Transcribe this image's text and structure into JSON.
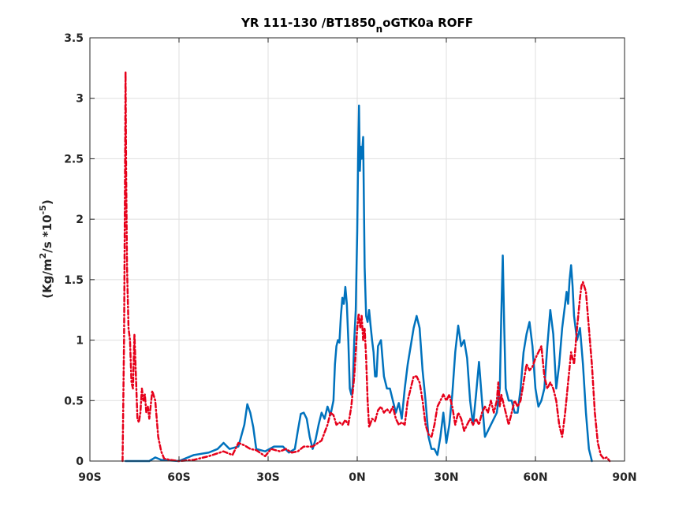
{
  "chart_data": {
    "type": "line",
    "title": {
      "main": "YR 111-130 /BT1850",
      "sub": "n",
      "tail": "oGTK0a ROFF"
    },
    "ylabel": {
      "unit": "(Kg/m",
      "sup1": "2",
      "mid": "/s   *10",
      "sup2": "-5",
      "end": ")"
    },
    "xlim": [
      -90,
      90
    ],
    "ylim": [
      0,
      3.5
    ],
    "grid": true,
    "x_ticks": [
      -90,
      -60,
      -30,
      0,
      30,
      60,
      90
    ],
    "x_tick_labels": [
      "90S",
      "60S",
      "30S",
      "0N",
      "30N",
      "60N",
      "90N"
    ],
    "y_ticks": [
      0,
      0.5,
      1,
      1.5,
      2,
      2.5,
      3,
      3.5
    ],
    "y_tick_labels": [
      "0",
      "0.5",
      "1",
      "1.5",
      "2",
      "2.5",
      "3",
      "3.5"
    ],
    "series": [
      {
        "color": "#0072bd",
        "style": "solid",
        "points": [
          [
            -78,
            0
          ],
          [
            -70,
            0
          ],
          [
            -68,
            0.03
          ],
          [
            -66,
            0.01
          ],
          [
            -60,
            0
          ],
          [
            -55,
            0.05
          ],
          [
            -50,
            0.07
          ],
          [
            -47,
            0.1
          ],
          [
            -45,
            0.15
          ],
          [
            -43,
            0.1
          ],
          [
            -40,
            0.12
          ],
          [
            -38,
            0.3
          ],
          [
            -37,
            0.47
          ],
          [
            -36,
            0.4
          ],
          [
            -35,
            0.28
          ],
          [
            -34,
            0.1
          ],
          [
            -31,
            0.08
          ],
          [
            -28,
            0.12
          ],
          [
            -25,
            0.12
          ],
          [
            -23,
            0.07
          ],
          [
            -21,
            0.1
          ],
          [
            -20,
            0.25
          ],
          [
            -19,
            0.39
          ],
          [
            -18,
            0.4
          ],
          [
            -17,
            0.35
          ],
          [
            -16,
            0.2
          ],
          [
            -15,
            0.1
          ],
          [
            -14,
            0.18
          ],
          [
            -13,
            0.3
          ],
          [
            -12,
            0.4
          ],
          [
            -11,
            0.35
          ],
          [
            -10,
            0.45
          ],
          [
            -9,
            0.38
          ],
          [
            -8,
            0.5
          ],
          [
            -7.5,
            0.8
          ],
          [
            -7,
            0.95
          ],
          [
            -6.5,
            1.0
          ],
          [
            -6,
            0.98
          ],
          [
            -5.5,
            1.2
          ],
          [
            -5,
            1.35
          ],
          [
            -4.5,
            1.3
          ],
          [
            -4,
            1.44
          ],
          [
            -3.5,
            1.3
          ],
          [
            -3,
            1.0
          ],
          [
            -2.5,
            0.6
          ],
          [
            -2,
            0.55
          ],
          [
            -1.5,
            0.62
          ],
          [
            -1,
            1.0
          ],
          [
            -0.5,
            1.25
          ],
          [
            0,
            1.9
          ],
          [
            0.3,
            2.5
          ],
          [
            0.6,
            2.94
          ],
          [
            0.9,
            2.4
          ],
          [
            1.2,
            2.6
          ],
          [
            1.5,
            2.5
          ],
          [
            2,
            2.68
          ],
          [
            2.5,
            1.6
          ],
          [
            3,
            1.2
          ],
          [
            3.5,
            1.15
          ],
          [
            4,
            1.25
          ],
          [
            4.5,
            1.12
          ],
          [
            5,
            1.0
          ],
          [
            5.5,
            0.9
          ],
          [
            6,
            0.7
          ],
          [
            6.5,
            0.7
          ],
          [
            7,
            0.95
          ],
          [
            8,
            1.0
          ],
          [
            9,
            0.7
          ],
          [
            10,
            0.6
          ],
          [
            11,
            0.6
          ],
          [
            12,
            0.5
          ],
          [
            13,
            0.4
          ],
          [
            14,
            0.48
          ],
          [
            15,
            0.35
          ],
          [
            16,
            0.6
          ],
          [
            17,
            0.8
          ],
          [
            18,
            0.95
          ],
          [
            19,
            1.1
          ],
          [
            20,
            1.2
          ],
          [
            21,
            1.1
          ],
          [
            22,
            0.75
          ],
          [
            23,
            0.5
          ],
          [
            24,
            0.2
          ],
          [
            25,
            0.1
          ],
          [
            26,
            0.1
          ],
          [
            27,
            0.05
          ],
          [
            28,
            0.2
          ],
          [
            29,
            0.4
          ],
          [
            30,
            0.15
          ],
          [
            31,
            0.3
          ],
          [
            32,
            0.55
          ],
          [
            33,
            0.9
          ],
          [
            34,
            1.12
          ],
          [
            35,
            0.95
          ],
          [
            36,
            1.0
          ],
          [
            37,
            0.85
          ],
          [
            38,
            0.5
          ],
          [
            39,
            0.3
          ],
          [
            40,
            0.55
          ],
          [
            41,
            0.82
          ],
          [
            42,
            0.5
          ],
          [
            43,
            0.2
          ],
          [
            44,
            0.25
          ],
          [
            45,
            0.3
          ],
          [
            46,
            0.35
          ],
          [
            47,
            0.4
          ],
          [
            48,
            0.6
          ],
          [
            48.5,
            1.2
          ],
          [
            49,
            1.7
          ],
          [
            49.5,
            1.1
          ],
          [
            50,
            0.6
          ],
          [
            51,
            0.5
          ],
          [
            52,
            0.5
          ],
          [
            53,
            0.4
          ],
          [
            54,
            0.4
          ],
          [
            55,
            0.6
          ],
          [
            56,
            0.9
          ],
          [
            57,
            1.05
          ],
          [
            58,
            1.15
          ],
          [
            59,
            0.95
          ],
          [
            60,
            0.6
          ],
          [
            61,
            0.45
          ],
          [
            62,
            0.5
          ],
          [
            63,
            0.6
          ],
          [
            64,
            0.95
          ],
          [
            65,
            1.25
          ],
          [
            66,
            1.05
          ],
          [
            67,
            0.6
          ],
          [
            68,
            0.8
          ],
          [
            69,
            1.1
          ],
          [
            70,
            1.3
          ],
          [
            70.5,
            1.4
          ],
          [
            71,
            1.3
          ],
          [
            71.5,
            1.5
          ],
          [
            72,
            1.62
          ],
          [
            72.5,
            1.45
          ],
          [
            73,
            1.2
          ],
          [
            74,
            1.0
          ],
          [
            75,
            1.1
          ],
          [
            76,
            0.8
          ],
          [
            77,
            0.4
          ],
          [
            78,
            0.1
          ],
          [
            79,
            0
          ]
        ]
      },
      {
        "color": "#e6001a",
        "style": "dashed",
        "points": [
          [
            -79,
            0
          ],
          [
            -78.5,
            1.0
          ],
          [
            -78.2,
            2.2
          ],
          [
            -78,
            3.22
          ],
          [
            -77.8,
            2.4
          ],
          [
            -77.5,
            1.6
          ],
          [
            -77,
            1.1
          ],
          [
            -76.5,
            1.0
          ],
          [
            -76,
            0.65
          ],
          [
            -75.5,
            0.6
          ],
          [
            -75,
            1.05
          ],
          [
            -74.5,
            0.7
          ],
          [
            -74,
            0.35
          ],
          [
            -73.5,
            0.32
          ],
          [
            -73,
            0.4
          ],
          [
            -72.5,
            0.6
          ],
          [
            -72,
            0.5
          ],
          [
            -71.5,
            0.55
          ],
          [
            -71,
            0.4
          ],
          [
            -70.5,
            0.45
          ],
          [
            -70,
            0.35
          ],
          [
            -69,
            0.58
          ],
          [
            -68,
            0.5
          ],
          [
            -67,
            0.2
          ],
          [
            -66,
            0.08
          ],
          [
            -65,
            0.02
          ],
          [
            -63,
            0.01
          ],
          [
            -60,
            0
          ],
          [
            -55,
            0.01
          ],
          [
            -50,
            0.04
          ],
          [
            -45,
            0.08
          ],
          [
            -42,
            0.05
          ],
          [
            -40,
            0.15
          ],
          [
            -38,
            0.13
          ],
          [
            -36,
            0.1
          ],
          [
            -34,
            0.09
          ],
          [
            -31,
            0.04
          ],
          [
            -29,
            0.1
          ],
          [
            -26,
            0.08
          ],
          [
            -24,
            0.1
          ],
          [
            -22,
            0.07
          ],
          [
            -20,
            0.08
          ],
          [
            -18,
            0.12
          ],
          [
            -15,
            0.12
          ],
          [
            -12,
            0.17
          ],
          [
            -10,
            0.3
          ],
          [
            -9,
            0.4
          ],
          [
            -8,
            0.38
          ],
          [
            -7,
            0.3
          ],
          [
            -6,
            0.32
          ],
          [
            -5,
            0.3
          ],
          [
            -4,
            0.34
          ],
          [
            -3,
            0.3
          ],
          [
            -2,
            0.45
          ],
          [
            -1,
            0.7
          ],
          [
            0,
            1.1
          ],
          [
            0.5,
            1.22
          ],
          [
            1,
            1.1
          ],
          [
            1.5,
            1.2
          ],
          [
            2,
            1.0
          ],
          [
            2.5,
            1.1
          ],
          [
            3,
            0.85
          ],
          [
            3.5,
            0.5
          ],
          [
            4,
            0.28
          ],
          [
            5,
            0.35
          ],
          [
            6,
            0.33
          ],
          [
            7,
            0.42
          ],
          [
            8,
            0.45
          ],
          [
            9,
            0.4
          ],
          [
            10,
            0.43
          ],
          [
            11,
            0.4
          ],
          [
            12,
            0.45
          ],
          [
            13,
            0.35
          ],
          [
            14,
            0.3
          ],
          [
            15,
            0.32
          ],
          [
            16,
            0.3
          ],
          [
            17,
            0.5
          ],
          [
            18,
            0.6
          ],
          [
            19,
            0.7
          ],
          [
            20,
            0.7
          ],
          [
            21,
            0.65
          ],
          [
            22,
            0.5
          ],
          [
            23,
            0.3
          ],
          [
            24,
            0.22
          ],
          [
            25,
            0.2
          ],
          [
            26,
            0.3
          ],
          [
            27,
            0.45
          ],
          [
            28,
            0.5
          ],
          [
            29,
            0.55
          ],
          [
            30,
            0.5
          ],
          [
            31,
            0.55
          ],
          [
            32,
            0.45
          ],
          [
            33,
            0.3
          ],
          [
            34,
            0.4
          ],
          [
            35,
            0.35
          ],
          [
            36,
            0.25
          ],
          [
            37,
            0.3
          ],
          [
            38,
            0.35
          ],
          [
            39,
            0.3
          ],
          [
            40,
            0.35
          ],
          [
            41,
            0.3
          ],
          [
            42,
            0.4
          ],
          [
            43,
            0.45
          ],
          [
            44,
            0.4
          ],
          [
            45,
            0.5
          ],
          [
            46,
            0.4
          ],
          [
            47,
            0.5
          ],
          [
            47.5,
            0.65
          ],
          [
            48,
            0.45
          ],
          [
            48.5,
            0.55
          ],
          [
            49,
            0.5
          ],
          [
            50,
            0.4
          ],
          [
            51,
            0.3
          ],
          [
            52,
            0.4
          ],
          [
            53,
            0.5
          ],
          [
            54,
            0.45
          ],
          [
            55,
            0.5
          ],
          [
            56,
            0.65
          ],
          [
            57,
            0.8
          ],
          [
            58,
            0.75
          ],
          [
            59,
            0.78
          ],
          [
            60,
            0.85
          ],
          [
            61,
            0.9
          ],
          [
            62,
            0.95
          ],
          [
            63,
            0.7
          ],
          [
            64,
            0.6
          ],
          [
            65,
            0.65
          ],
          [
            66,
            0.6
          ],
          [
            67,
            0.5
          ],
          [
            68,
            0.3
          ],
          [
            69,
            0.2
          ],
          [
            70,
            0.4
          ],
          [
            71,
            0.65
          ],
          [
            72,
            0.9
          ],
          [
            73,
            0.8
          ],
          [
            74,
            1.1
          ],
          [
            75,
            1.35
          ],
          [
            75.5,
            1.45
          ],
          [
            76,
            1.48
          ],
          [
            77,
            1.4
          ],
          [
            78,
            1.1
          ],
          [
            79,
            0.8
          ],
          [
            80,
            0.4
          ],
          [
            81,
            0.15
          ],
          [
            82,
            0.05
          ],
          [
            83,
            0.02
          ],
          [
            84,
            0.03
          ],
          [
            85,
            0
          ]
        ]
      }
    ]
  }
}
